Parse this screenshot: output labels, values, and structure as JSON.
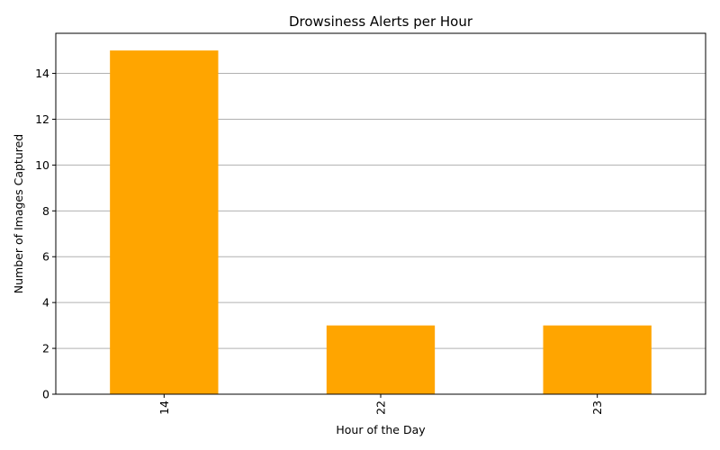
{
  "chart_data": {
    "type": "bar",
    "title": "Drowsiness Alerts per Hour",
    "xlabel": "Hour of the Day",
    "ylabel": "Number of Images Captured",
    "categories": [
      "14",
      "22",
      "23"
    ],
    "values": [
      15,
      3,
      3
    ],
    "ylim": [
      0,
      15.75
    ],
    "yticks": [
      0,
      2,
      4,
      6,
      8,
      10,
      12,
      14
    ],
    "grid": "y",
    "bar_color": "#FFA500",
    "gridline_color": "#b0b0b0",
    "xtick_rotation": "vertical"
  }
}
